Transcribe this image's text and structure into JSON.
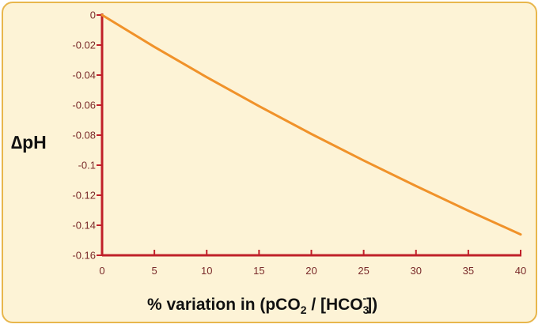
{
  "chart_data": {
    "type": "line",
    "title": "",
    "xlabel": "% variation in (pCO",
    "xlabel_sub": "2",
    "xlabel_mid": " / [HCO",
    "xlabel_sub2": "3",
    "xlabel_sup2": "-",
    "xlabel_end": "])",
    "ylabel": "∆pH",
    "xlim": [
      0,
      40
    ],
    "ylim": [
      -0.16,
      0
    ],
    "x_ticks": [
      "0",
      "5",
      "10",
      "15",
      "20",
      "25",
      "30",
      "35",
      "40"
    ],
    "y_ticks": [
      "0",
      "-0.02",
      "-0.04",
      "-0.06",
      "-0.08",
      "-0.1",
      "-0.12",
      "-0.14",
      "-0.16"
    ],
    "series": [
      {
        "x": [
          0,
          5,
          10,
          15,
          20,
          25,
          30,
          35,
          40
        ],
        "values": [
          0,
          -0.0212,
          -0.0414,
          -0.0607,
          -0.0792,
          -0.0969,
          -0.1139,
          -0.1303,
          -0.1461
        ]
      }
    ],
    "colors": {
      "line": "#f0922a",
      "axis": "#c0202a",
      "tick_text": "#7a2a2a",
      "frame": "#e8b64c",
      "background": "#fdf3d6"
    }
  }
}
